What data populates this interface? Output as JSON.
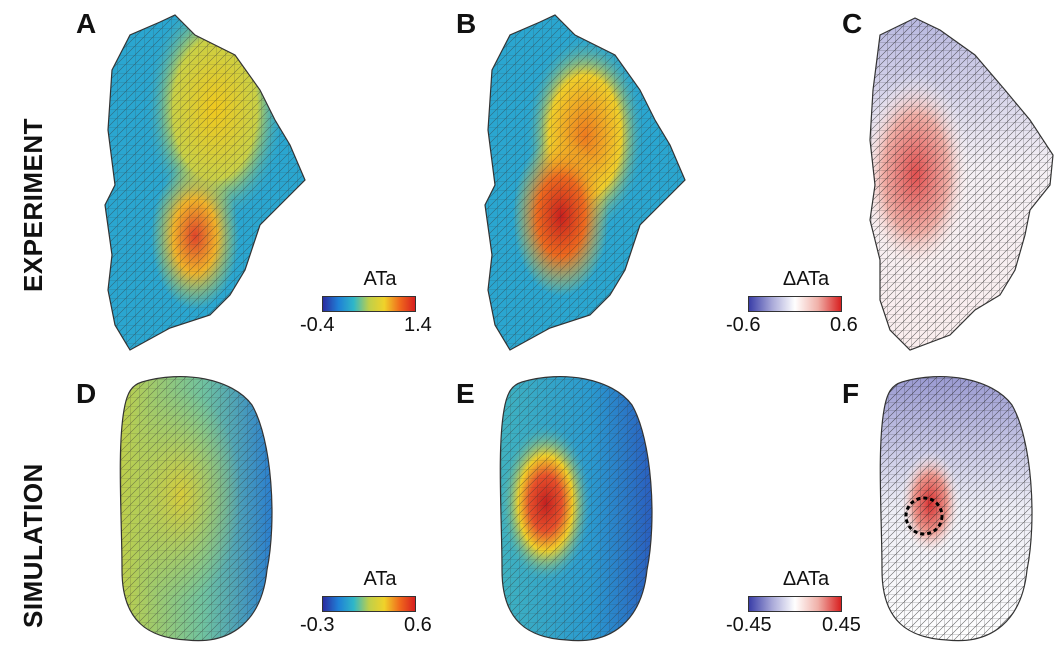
{
  "rows": [
    {
      "label": "EXPERIMENT"
    },
    {
      "label": "SIMULATION"
    }
  ],
  "panels": [
    {
      "letter": "A"
    },
    {
      "letter": "B"
    },
    {
      "letter": "C"
    },
    {
      "letter": "D"
    },
    {
      "letter": "E"
    },
    {
      "letter": "F"
    }
  ],
  "colorbars": [
    {
      "title": "ATa",
      "min": "-0.4",
      "max": "1.4",
      "scheme": "parula"
    },
    {
      "title": "ΔATa",
      "min": "-0.6",
      "max": "0.6",
      "scheme": "diverging"
    },
    {
      "title": "ATa",
      "min": "-0.3",
      "max": "0.6",
      "scheme": "parula"
    },
    {
      "title": "ΔATa",
      "min": "-0.45",
      "max": "0.45",
      "scheme": "diverging"
    }
  ],
  "colors": {
    "parula": [
      "#2b2ca0",
      "#1f7fd6",
      "#2fb7c8",
      "#bfcf4a",
      "#f0d22a",
      "#f06a1c",
      "#d71f1f"
    ],
    "diverging": [
      "#3a3ea8",
      "#a8a8d8",
      "#ffffff",
      "#f0b0a8",
      "#d82020"
    ]
  }
}
